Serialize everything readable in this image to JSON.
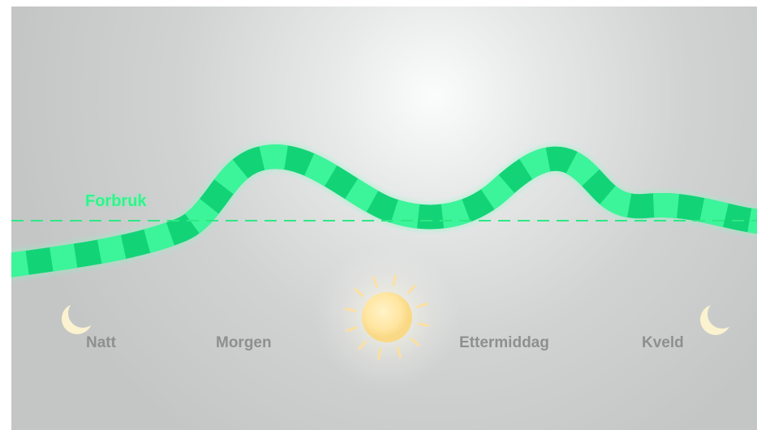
{
  "labels": {
    "consumption": "Forbruk",
    "times": {
      "night": "Natt",
      "morning": "Morgen",
      "afternoon": "Ettermiddag",
      "evening": "Kveld"
    }
  },
  "icons": {
    "night": "crescent-moon",
    "midday": "sun",
    "evening": "crescent-moon"
  },
  "colors": {
    "curve_light": "#3cf59a",
    "curve_dark": "#12d477",
    "consumption_line": "#2fe884",
    "time_label": "#8e9090",
    "moon": "#fbf3cf",
    "sun": "#ffe7a8",
    "background": "#c9cccb"
  }
}
